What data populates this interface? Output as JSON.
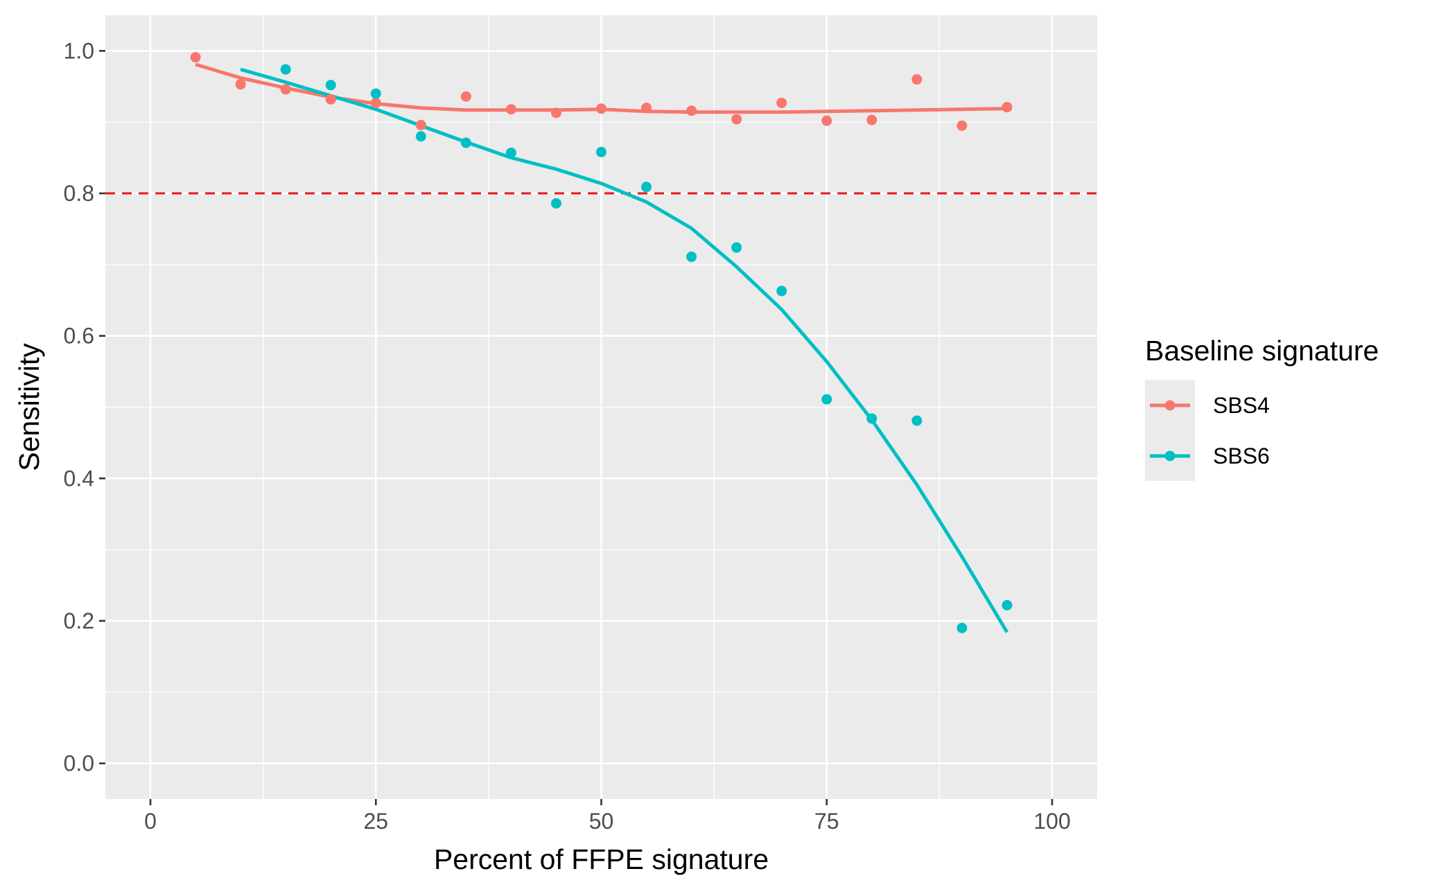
{
  "chart_data": {
    "type": "scatter",
    "xlabel": "Percent of FFPE signature",
    "ylabel": "Sensitivity",
    "xlim": [
      -5,
      105
    ],
    "ylim": [
      -0.05,
      1.05
    ],
    "x_ticks": [
      0,
      25,
      50,
      75,
      100
    ],
    "x_tick_labels": [
      "0",
      "25",
      "50",
      "75",
      "100"
    ],
    "y_ticks": [
      0.0,
      0.2,
      0.4,
      0.6,
      0.8,
      1.0
    ],
    "y_tick_labels": [
      "0.0",
      "0.2",
      "0.4",
      "0.6",
      "0.8",
      "1.0"
    ],
    "grid": true,
    "legend": {
      "title": "Baseline signature",
      "position": "right"
    },
    "reference_line": {
      "y": 0.8,
      "style": "dashed",
      "color": "#e41a1c"
    },
    "series": [
      {
        "name": "SBS4",
        "color": "#f8766d",
        "points": {
          "x": [
            5,
            10,
            15,
            20,
            25,
            30,
            35,
            40,
            45,
            50,
            55,
            60,
            65,
            70,
            75,
            80,
            85,
            90,
            95
          ],
          "y": [
            0.991,
            0.953,
            0.946,
            0.932,
            0.927,
            0.896,
            0.936,
            0.918,
            0.913,
            0.919,
            0.92,
            0.916,
            0.904,
            0.927,
            0.902,
            0.903,
            0.96,
            0.895,
            0.921
          ]
        },
        "smooth": {
          "x": [
            5,
            10,
            15,
            20,
            25,
            30,
            35,
            40,
            45,
            50,
            55,
            60,
            65,
            70,
            75,
            80,
            85,
            90,
            95
          ],
          "y": [
            0.981,
            0.962,
            0.948,
            0.935,
            0.926,
            0.92,
            0.917,
            0.917,
            0.917,
            0.918,
            0.915,
            0.914,
            0.914,
            0.914,
            0.915,
            0.916,
            0.917,
            0.918,
            0.919
          ]
        }
      },
      {
        "name": "SBS6",
        "color": "#00bfc4",
        "points": {
          "x": [
            15,
            20,
            25,
            30,
            35,
            40,
            45,
            50,
            55,
            60,
            65,
            70,
            75,
            80,
            85,
            90,
            95
          ],
          "y": [
            0.974,
            0.952,
            0.94,
            0.88,
            0.871,
            0.857,
            0.786,
            0.858,
            0.809,
            0.711,
            0.724,
            0.663,
            0.511,
            0.484,
            0.481,
            0.19,
            0.222
          ]
        },
        "smooth": {
          "x": [
            10,
            15,
            20,
            25,
            30,
            35,
            40,
            45,
            50,
            55,
            60,
            65,
            70,
            75,
            80,
            85,
            90,
            95
          ],
          "y": [
            0.974,
            0.956,
            0.937,
            0.918,
            0.895,
            0.872,
            0.85,
            0.834,
            0.814,
            0.788,
            0.751,
            0.697,
            0.637,
            0.564,
            0.482,
            0.391,
            0.29,
            0.184
          ]
        }
      }
    ]
  }
}
